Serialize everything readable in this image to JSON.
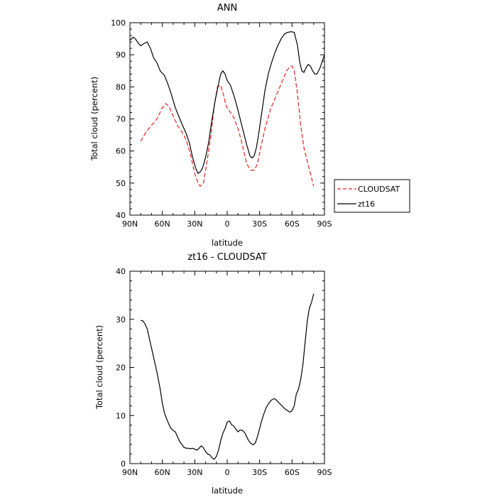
{
  "chart_data": [
    {
      "type": "line",
      "title": "ANN",
      "xlabel": "latitude",
      "ylabel": "Total cloud (percent)",
      "xlim": [
        90,
        -90
      ],
      "ylim": [
        40,
        100
      ],
      "x_ticks": [
        90,
        60,
        30,
        0,
        -30,
        -60,
        -90
      ],
      "x_tick_labels": [
        "90N",
        "60N",
        "30N",
        "0",
        "30S",
        "60S",
        "90S"
      ],
      "y_ticks": [
        40,
        50,
        60,
        70,
        80,
        90,
        100
      ],
      "y_tick_labels": [
        "40",
        "50",
        "60",
        "70",
        "80",
        "90",
        "100"
      ],
      "legend_position": "right",
      "series": [
        {
          "name": "CLOUDSAT",
          "color": "#e8221f",
          "dash": "dashed",
          "x": [
            80,
            75,
            70,
            65,
            60,
            57,
            54,
            50,
            46,
            42,
            38,
            34,
            30,
            27,
            25,
            22,
            19,
            15,
            12,
            9,
            6,
            3,
            1,
            -1,
            -3,
            -6,
            -10,
            -14,
            -18,
            -22,
            -25,
            -28,
            -31,
            -35,
            -40,
            -45,
            -50,
            -55,
            -58,
            -60,
            -62,
            -65,
            -68,
            -71,
            -74,
            -77,
            -80
          ],
          "y": [
            63,
            66,
            68,
            70,
            73.5,
            74.8,
            74,
            71,
            68,
            66,
            63.5,
            59,
            53,
            50,
            49,
            50,
            56,
            65,
            74,
            80,
            80.5,
            77,
            74,
            73,
            72,
            70.5,
            67,
            62,
            56,
            54,
            54,
            56,
            61,
            67,
            73,
            77,
            81,
            85,
            86.3,
            86.5,
            85,
            78,
            68,
            61,
            57,
            53,
            49
          ]
        },
        {
          "name": "zt16",
          "color": "#000000",
          "dash": "solid",
          "x": [
            90,
            87,
            85,
            82,
            80,
            77,
            74,
            71,
            68,
            65,
            62,
            58,
            55,
            52,
            48,
            45,
            42,
            38,
            35,
            32,
            29,
            27,
            25,
            23,
            20,
            17,
            14,
            11,
            8,
            6,
            4,
            2,
            0,
            -3,
            -6,
            -9,
            -12,
            -15,
            -18,
            -21,
            -23,
            -25,
            -27,
            -29,
            -32,
            -35,
            -38,
            -41,
            -44,
            -47,
            -50,
            -53,
            -56,
            -59,
            -62,
            -65,
            -67,
            -69,
            -71,
            -73,
            -75,
            -77,
            -79,
            -81,
            -83,
            -86,
            -90
          ],
          "y": [
            94.5,
            95.5,
            95,
            93.5,
            92.8,
            93.5,
            94,
            92,
            89,
            87.5,
            85,
            83.5,
            81,
            78,
            73.5,
            71,
            68.5,
            65.5,
            62.5,
            58,
            54.5,
            53,
            53.5,
            54.5,
            58,
            63,
            70,
            76,
            81,
            84,
            85,
            84,
            82,
            80.5,
            77.5,
            74,
            70,
            66,
            62,
            58.5,
            57.8,
            58.5,
            61,
            65,
            72,
            79,
            84,
            87.5,
            90.5,
            93,
            95,
            96.5,
            97,
            97.2,
            97,
            93,
            88,
            85,
            84.5,
            86,
            87,
            86.5,
            85,
            84,
            84,
            86,
            90
          ]
        }
      ]
    },
    {
      "type": "line",
      "title": "zt16 - CLOUDSAT",
      "xlabel": "latitude",
      "ylabel": "Total cloud (percent)",
      "xlim": [
        90,
        -90
      ],
      "ylim": [
        0,
        40
      ],
      "x_ticks": [
        90,
        60,
        30,
        0,
        -30,
        -60,
        -90
      ],
      "x_tick_labels": [
        "90N",
        "60N",
        "30N",
        "0",
        "30S",
        "60S",
        "90S"
      ],
      "y_ticks": [
        0,
        10,
        20,
        30,
        40
      ],
      "y_tick_labels": [
        "0",
        "10",
        "20",
        "30",
        "40"
      ],
      "series": [
        {
          "color": "#000000",
          "dash": "solid",
          "x": [
            80,
            78,
            76,
            74,
            71,
            68,
            65,
            62,
            60,
            58,
            56,
            54,
            52,
            50,
            48,
            46,
            44,
            42,
            40,
            38,
            36,
            34,
            32,
            30,
            28,
            26,
            24,
            22,
            20,
            18,
            16,
            14,
            12,
            10,
            8,
            6,
            4,
            2,
            0,
            -2,
            -4,
            -6,
            -8,
            -10,
            -12,
            -14,
            -16,
            -18,
            -20,
            -22,
            -24,
            -26,
            -28,
            -30,
            -32,
            -34,
            -36,
            -38,
            -40,
            -42,
            -44,
            -46,
            -48,
            -50,
            -52,
            -54,
            -56,
            -58,
            -60,
            -62,
            -64,
            -66,
            -68,
            -70,
            -72,
            -74,
            -76,
            -78,
            -80
          ],
          "y": [
            29.8,
            29.7,
            29,
            28,
            25,
            22,
            19,
            15.5,
            12.5,
            10.5,
            9.3,
            8.2,
            7.3,
            6.9,
            6.6,
            5.6,
            4.6,
            4,
            3.4,
            3.2,
            3.2,
            3.1,
            3.2,
            3,
            2.8,
            3.2,
            3.7,
            3.3,
            2.5,
            2,
            1.8,
            1.2,
            0.9,
            1.5,
            2.8,
            4.8,
            6.3,
            7.3,
            8.6,
            8.9,
            8.1,
            7.8,
            7.2,
            6.6,
            7,
            6.9,
            6.5,
            5.6,
            4.7,
            4.2,
            3.9,
            4.3,
            5.6,
            7.3,
            9,
            10.4,
            11.6,
            12.4,
            13,
            13.4,
            13.5,
            13.1,
            12.6,
            12.2,
            11.7,
            11.3,
            11,
            10.7,
            11,
            12,
            14.5,
            15.5,
            17.5,
            20.5,
            25,
            29.5,
            32.3,
            33.5,
            35.3
          ]
        }
      ]
    }
  ]
}
